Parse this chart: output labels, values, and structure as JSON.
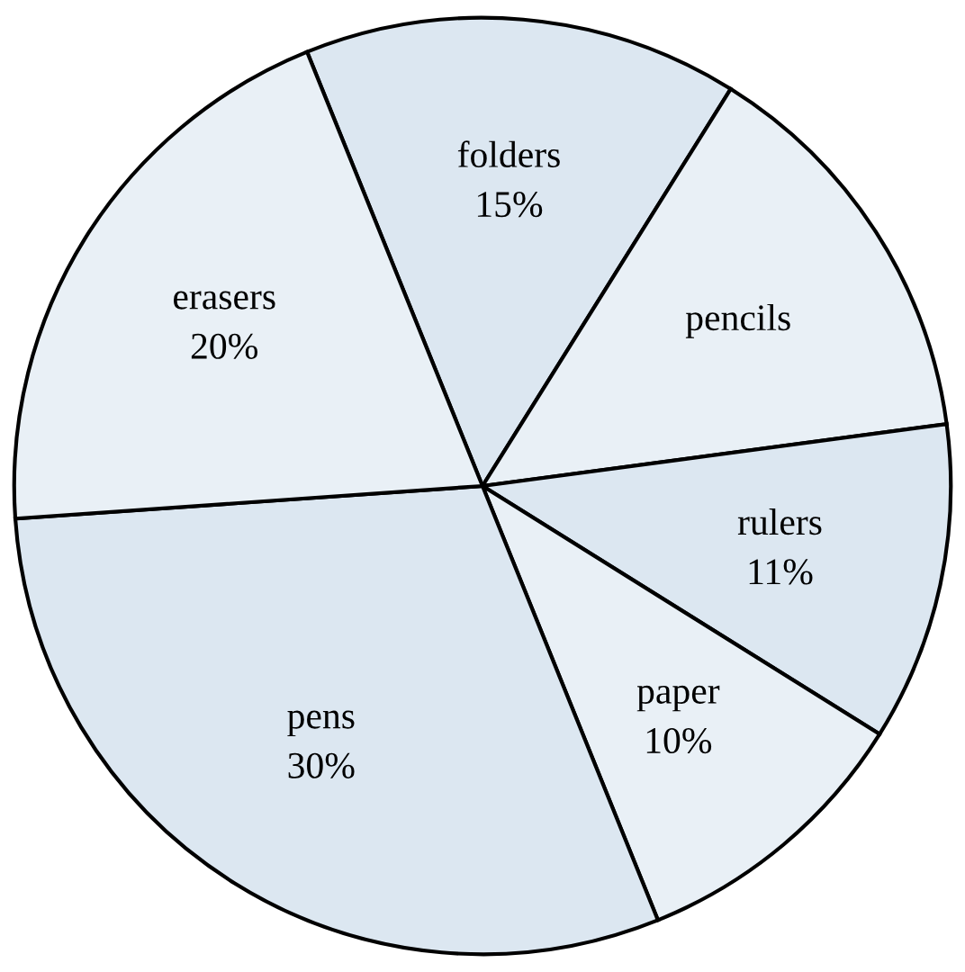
{
  "chart_data": {
    "type": "pie",
    "categories": [
      "folders",
      "pencils",
      "rulers",
      "paper",
      "pens",
      "erasers"
    ],
    "values": [
      15,
      14,
      11,
      10,
      30,
      20
    ],
    "value_labels": [
      "15%",
      null,
      "11%",
      "10%",
      "30%",
      "20%"
    ],
    "colors": [
      "#dce7f1",
      "#e9f0f6",
      "#dce7f1",
      "#e9f0f6",
      "#dce7f1",
      "#e9f0f6"
    ]
  }
}
